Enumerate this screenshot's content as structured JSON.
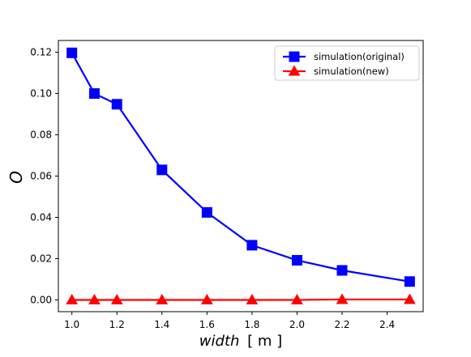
{
  "chart_data": {
    "type": "line",
    "title": "",
    "xlabel_italic": "width",
    "xlabel_unit": "[ m ]",
    "ylabel": "O",
    "xlim": [
      0.94,
      2.56
    ],
    "ylim": [
      -0.0057,
      0.1257
    ],
    "xticks": [
      1.0,
      1.2,
      1.4,
      1.6,
      1.8,
      2.0,
      2.2,
      2.4
    ],
    "xtick_labels": [
      "1.0",
      "1.2",
      "1.4",
      "1.6",
      "1.8",
      "2.0",
      "2.2",
      "2.4"
    ],
    "yticks": [
      0.0,
      0.02,
      0.04,
      0.06,
      0.08,
      0.1,
      0.12
    ],
    "ytick_labels": [
      "0.00",
      "0.02",
      "0.04",
      "0.06",
      "0.08",
      "0.10",
      "0.12"
    ],
    "grid": false,
    "legend_position": "top-right",
    "x": [
      1.0,
      1.1,
      1.2,
      1.4,
      1.6,
      1.8,
      2.0,
      2.2,
      2.5
    ],
    "series": [
      {
        "name": "simulation(original)",
        "color": "#0000ff",
        "marker": "square",
        "values": [
          0.1197,
          0.1,
          0.0948,
          0.063,
          0.0424,
          0.0265,
          0.0192,
          0.0143,
          0.0089
        ]
      },
      {
        "name": "simulation(new)",
        "color": "#ff0000",
        "marker": "triangle",
        "values": [
          0.0,
          0.0,
          0.0,
          0.0,
          0.0,
          0.0,
          0.0,
          0.0002,
          0.0002
        ]
      }
    ]
  }
}
